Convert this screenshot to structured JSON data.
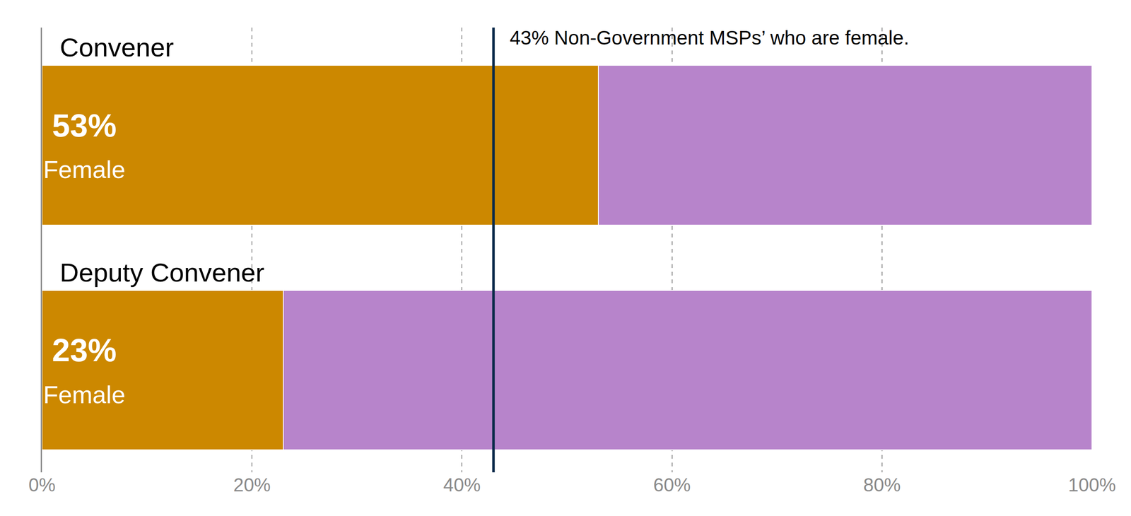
{
  "chart_data": {
    "type": "bar",
    "orientation": "horizontal",
    "stacked": true,
    "data_labels": true,
    "grid": true,
    "categories": [
      "Convener",
      "Deputy Convener"
    ],
    "series": [
      {
        "name": "Female",
        "color": "#cc8800",
        "values": [
          53,
          23
        ],
        "value_labels": [
          "53%",
          "23%"
        ]
      },
      {
        "color": "#b784cb",
        "values": [
          47,
          77
        ]
      }
    ],
    "xlim": [
      0,
      100
    ],
    "xticks": [
      {
        "value": 0,
        "label": "0%"
      },
      {
        "value": 20,
        "label": "20%"
      },
      {
        "value": 40,
        "label": "40%"
      },
      {
        "value": 60,
        "label": "60%"
      },
      {
        "value": 80,
        "label": "80%"
      },
      {
        "value": 100,
        "label": "100%"
      }
    ],
    "annotations": [
      {
        "x": 43,
        "text": "43% Non-Government MSPs’ who are female."
      }
    ]
  }
}
